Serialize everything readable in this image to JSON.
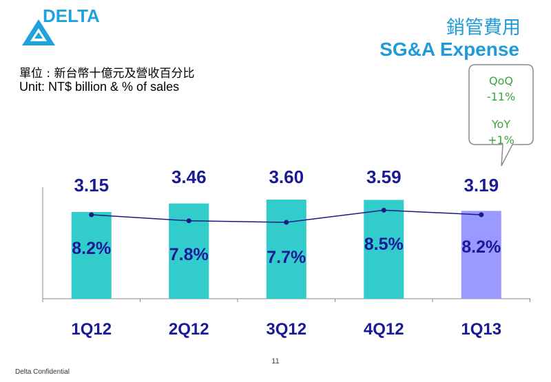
{
  "brand": {
    "logo_text": "DELTA"
  },
  "header": {
    "title_cn": "銷管費用",
    "title_en": "SG&A Expense"
  },
  "unit": {
    "cn": "單位 : 新台幣十億元及營收百分比",
    "en": "Unit: NT$ billion & % of sales"
  },
  "callout": {
    "qoq_label": "QoQ",
    "qoq_value": "-11%",
    "yoy_label": "YoY",
    "yoy_value": "+1%"
  },
  "colors": {
    "bar": "#33cccc",
    "bar_highlight": "#9999ff",
    "line": "#1a1a80",
    "label": "#1a1a99",
    "callout_border": "#8a8a8a",
    "callout_text": "#3aa43a"
  },
  "chart_data": {
    "type": "bar",
    "categories": [
      "1Q12",
      "2Q12",
      "3Q12",
      "4Q12",
      "1Q13"
    ],
    "series": [
      {
        "values": [
          3.15,
          3.46,
          3.6,
          3.59,
          3.19
        ],
        "labels": [
          "3.15",
          "3.46",
          "3.60",
          "3.59",
          "3.19"
        ],
        "type": "bar"
      },
      {
        "values": [
          8.2,
          7.8,
          7.7,
          8.5,
          8.2
        ],
        "labels": [
          "8.2%",
          "7.8%",
          "7.7%",
          "8.5%",
          "8.2%"
        ],
        "type": "line"
      }
    ],
    "highlight_index": 4
  },
  "footer": {
    "confidential": "Delta Confidential",
    "page": "11"
  }
}
